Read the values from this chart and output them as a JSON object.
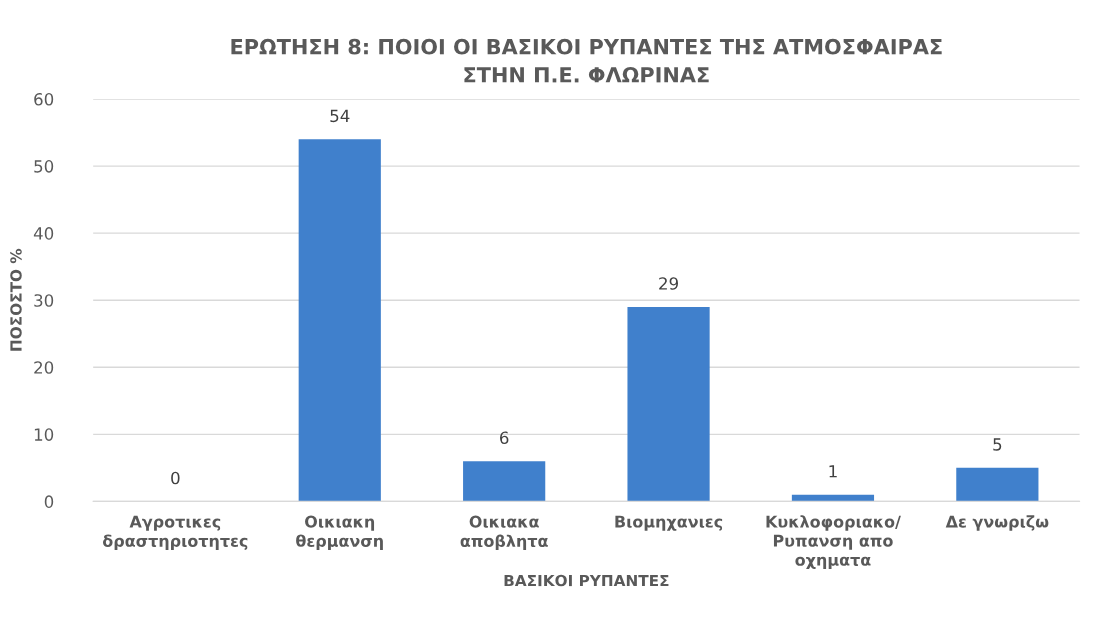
{
  "chart_data": {
    "type": "bar",
    "title": "ΕΡΩΤΗΣΗ 8: ΠΟΙΟΙ ΟΙ ΒΑΣΙΚΟΙ ΡΥΠΑΝΤΕΣ ΤΗΣ ΑΤΜΟΣΦΑΙΡΑΣ\nΣΤΗΝ Π.Ε. ΦΛΩΡΙΝΑΣ",
    "xlabel": "ΒΑΣΙΚΟΙ ΡΥΠΑΝΤΕΣ",
    "ylabel": "ΠΟΣΟΣΤΟ %",
    "categories": [
      "Αγροτικες\nδραστηριοτητες",
      "Οικιακη\nθερμανση",
      "Οικιακα\nαποβλητα",
      "Βιομηχανιες",
      "Κυκλοφοριακο/\nΡυπανση απο\nοχηματα",
      "Δε γνωριζω"
    ],
    "values": [
      0,
      54,
      6,
      29,
      1,
      5
    ],
    "color": "#4080cc",
    "ylim": [
      0,
      60
    ],
    "yticks": [
      0,
      10,
      20,
      30,
      40,
      50,
      60
    ],
    "grid": "y",
    "data_labels": true
  }
}
